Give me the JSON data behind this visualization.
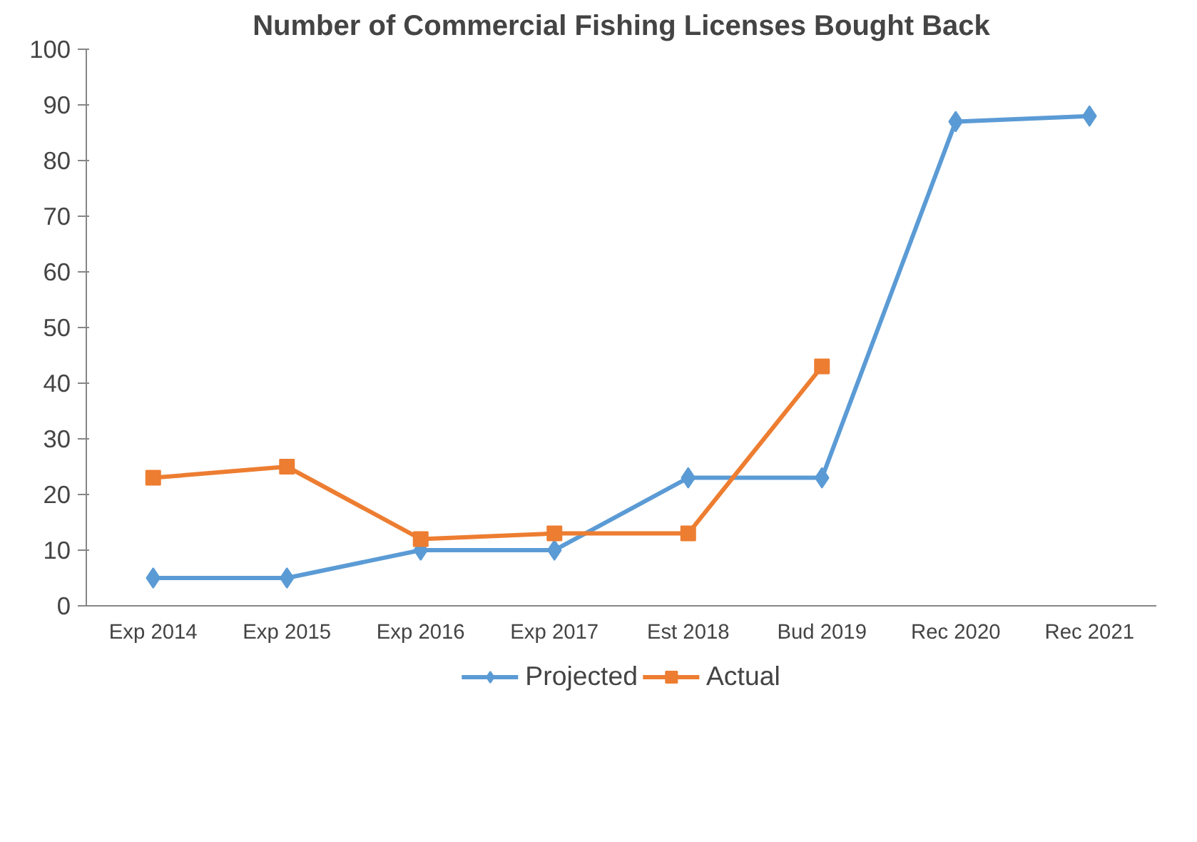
{
  "chart_data": {
    "type": "line",
    "title": "Number of Commercial Fishing Licenses Bought Back",
    "categories": [
      "Exp 2014",
      "Exp 2015",
      "Exp 2016",
      "Exp 2017",
      "Est 2018",
      "Bud 2019",
      "Rec 2020",
      "Rec 2021"
    ],
    "series": [
      {
        "name": "Projected",
        "color": "#5b9bd5",
        "marker": "diamond",
        "values": [
          5,
          5,
          10,
          10,
          23,
          23,
          87,
          88
        ]
      },
      {
        "name": "Actual",
        "color": "#ed7d31",
        "marker": "square",
        "values": [
          23,
          25,
          12,
          13,
          13,
          43,
          null,
          null
        ]
      }
    ],
    "ylim": [
      0,
      100
    ],
    "yticks": [
      0,
      10,
      20,
      30,
      40,
      50,
      60,
      70,
      80,
      90,
      100
    ],
    "grid": false,
    "legend": "bottom",
    "line_style": "solid"
  }
}
